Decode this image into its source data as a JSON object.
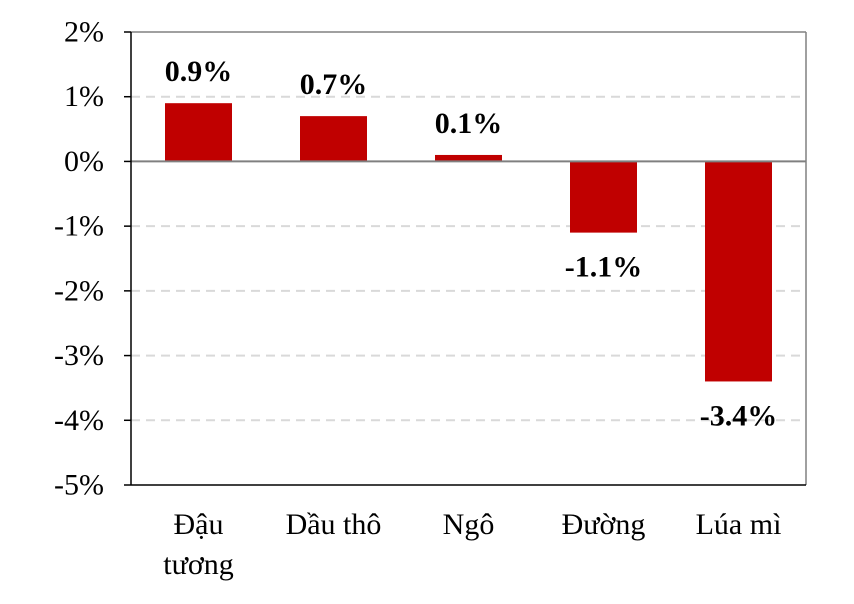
{
  "chart_data": {
    "type": "bar",
    "title": "",
    "xlabel": "",
    "ylabel": "",
    "categories": [
      "Đậu tương",
      "Dầu thô",
      "Ngô",
      "Đường",
      "Lúa mì"
    ],
    "category_label_lines": [
      [
        "Đậu",
        "tương"
      ],
      [
        "Dầu thô"
      ],
      [
        "Ngô"
      ],
      [
        "Đường"
      ],
      [
        "Lúa mì"
      ]
    ],
    "values": [
      0.9,
      0.7,
      0.1,
      -1.1,
      -3.4
    ],
    "value_labels": [
      "0.9%",
      "0.7%",
      "0.1%",
      "-1.1%",
      "-3.4%"
    ],
    "ylim": [
      -5,
      2
    ],
    "yticks": [
      2,
      1,
      0,
      -1,
      -2,
      -3,
      -4,
      -5
    ],
    "ytick_labels": [
      "2%",
      "1%",
      "0%",
      "-1%",
      "-2%",
      "-3%",
      "-4%",
      "-5%"
    ],
    "grid": "horizontal-dashed",
    "legend": "none",
    "colors": {
      "bar": "#C00000",
      "grid": "#D9D9D9",
      "axis": "#000000",
      "plot_border": "#808080",
      "zero_line": "#808080"
    }
  }
}
